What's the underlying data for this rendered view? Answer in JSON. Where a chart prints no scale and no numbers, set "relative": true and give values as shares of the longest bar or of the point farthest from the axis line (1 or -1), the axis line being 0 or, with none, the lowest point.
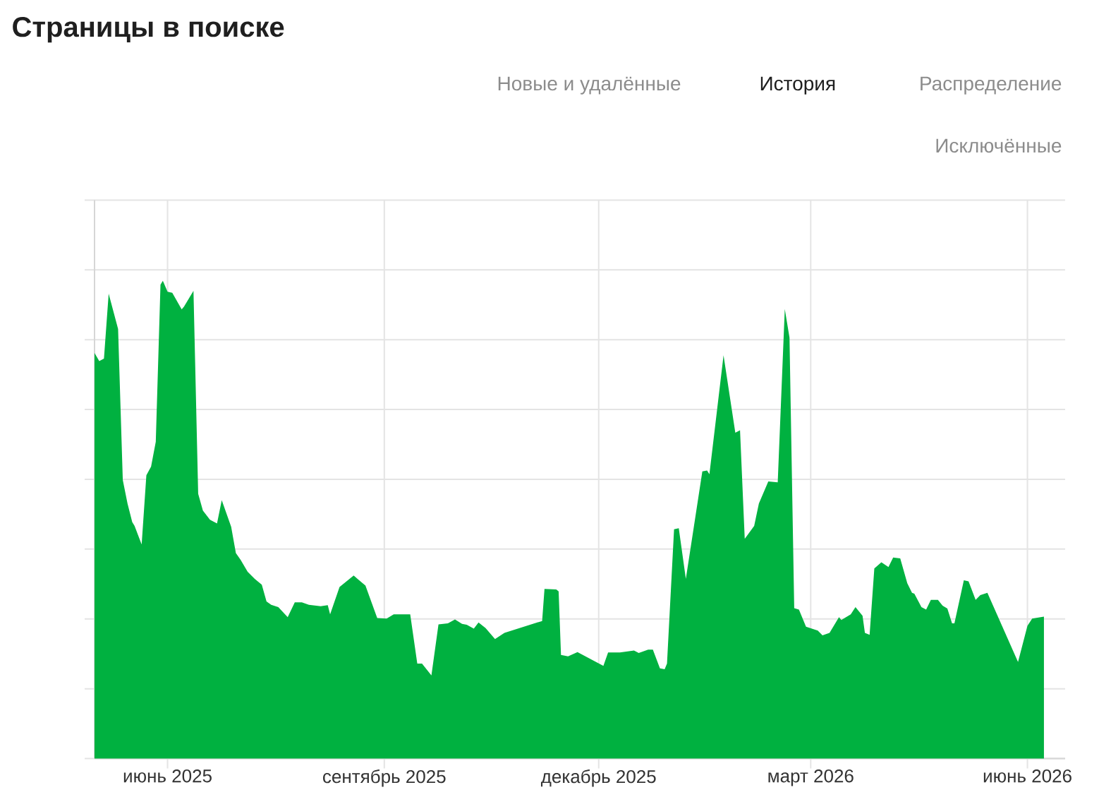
{
  "chart_data": {
    "type": "area",
    "title": "Страницы в поиске",
    "annotations": [
      "Новые и удалённые",
      "История",
      "Распределение",
      "Исключённые"
    ],
    "relative": true,
    "grid": true,
    "color": "#00b140",
    "xlim": [
      "2025-05-01",
      "2026-06-17"
    ],
    "xticks": [
      {
        "value": "2025-06-01",
        "label": "июнь 2025"
      },
      {
        "value": "2025-09-01",
        "label": "сентябрь 2025"
      },
      {
        "value": "2025-12-01",
        "label": "декабрь 2025"
      },
      {
        "value": "2026-03-01",
        "label": "март 2026"
      },
      {
        "value": "2026-06-01",
        "label": "июнь 2026"
      }
    ],
    "x": [
      "2025-05-01",
      "2025-05-03",
      "2025-05-05",
      "2025-05-07",
      "2025-05-11",
      "2025-05-13",
      "2025-05-15",
      "2025-05-17",
      "2025-05-18",
      "2025-05-21",
      "2025-05-23",
      "2025-05-25",
      "2025-05-27",
      "2025-05-29",
      "2025-05-30",
      "2025-06-01",
      "2025-06-03",
      "2025-06-07",
      "2025-06-08",
      "2025-06-12",
      "2025-06-14",
      "2025-06-16",
      "2025-06-19",
      "2025-06-22",
      "2025-06-24",
      "2025-06-28",
      "2025-06-30",
      "2025-07-02",
      "2025-07-05",
      "2025-07-08",
      "2025-07-11",
      "2025-07-13",
      "2025-07-15",
      "2025-07-18",
      "2025-07-22",
      "2025-07-25",
      "2025-07-28",
      "2025-07-31",
      "2025-08-05",
      "2025-08-08",
      "2025-08-09",
      "2025-08-13",
      "2025-08-19",
      "2025-08-24",
      "2025-08-29",
      "2025-09-02",
      "2025-09-05",
      "2025-09-12",
      "2025-09-15",
      "2025-09-17",
      "2025-09-21",
      "2025-09-24",
      "2025-09-28",
      "2025-10-01",
      "2025-10-04",
      "2025-10-06",
      "2025-10-09",
      "2025-10-11",
      "2025-10-14",
      "2025-10-18",
      "2025-10-22",
      "2025-11-07",
      "2025-11-08",
      "2025-11-13",
      "2025-11-14",
      "2025-11-15",
      "2025-11-18",
      "2025-11-22",
      "2025-12-03",
      "2025-12-05",
      "2025-12-10",
      "2025-12-16",
      "2025-12-18",
      "2025-12-22",
      "2025-12-24",
      "2025-12-27",
      "2025-12-29",
      "2025-12-30",
      "2026-01-02",
      "2026-01-04",
      "2026-01-07",
      "2026-01-14",
      "2026-01-16",
      "2026-01-17",
      "2026-01-23",
      "2026-01-28",
      "2026-01-30",
      "2026-02-01",
      "2026-02-05",
      "2026-02-07",
      "2026-02-11",
      "2026-02-15",
      "2026-02-18",
      "2026-02-20",
      "2026-02-22",
      "2026-02-24",
      "2026-02-27",
      "2026-03-04",
      "2026-03-06",
      "2026-03-09",
      "2026-03-13",
      "2026-03-14",
      "2026-03-18",
      "2026-03-20",
      "2026-03-23",
      "2026-03-24",
      "2026-03-26",
      "2026-03-28",
      "2026-03-31",
      "2026-04-03",
      "2026-04-05",
      "2026-04-08",
      "2026-04-11",
      "2026-04-13",
      "2026-04-14",
      "2026-04-17",
      "2026-04-19",
      "2026-04-21",
      "2026-04-24",
      "2026-04-26",
      "2026-04-28",
      "2026-04-30",
      "2026-05-01",
      "2026-05-05",
      "2026-05-07",
      "2026-05-10",
      "2026-05-12",
      "2026-05-15",
      "2026-05-28",
      "2026-06-01",
      "2026-06-03",
      "2026-06-08"
    ],
    "values": [
      0.849,
      0.832,
      0.837,
      0.973,
      0.899,
      0.583,
      0.534,
      0.495,
      0.487,
      0.448,
      0.593,
      0.611,
      0.663,
      0.992,
      1,
      0.977,
      0.975,
      0.94,
      0.946,
      0.979,
      0.554,
      0.519,
      0.5,
      0.492,
      0.541,
      0.485,
      0.43,
      0.416,
      0.391,
      0.376,
      0.364,
      0.329,
      0.322,
      0.317,
      0.296,
      0.327,
      0.327,
      0.322,
      0.319,
      0.321,
      0.302,
      0.359,
      0.383,
      0.362,
      0.294,
      0.293,
      0.302,
      0.302,
      0.199,
      0.199,
      0.174,
      0.281,
      0.283,
      0.291,
      0.282,
      0.28,
      0.272,
      0.285,
      0.273,
      0.25,
      0.263,
      0.288,
      0.355,
      0.354,
      0.35,
      0.217,
      0.214,
      0.223,
      0.194,
      0.222,
      0.222,
      0.226,
      0.221,
      0.228,
      0.228,
      0.189,
      0.187,
      0.199,
      0.48,
      0.482,
      0.376,
      0.601,
      0.603,
      0.595,
      0.844,
      0.682,
      0.687,
      0.46,
      0.487,
      0.534,
      0.58,
      0.578,
      0.941,
      0.881,
      0.315,
      0.312,
      0.276,
      0.268,
      0.258,
      0.263,
      0.296,
      0.29,
      0.302,
      0.317,
      0.299,
      0.263,
      0.259,
      0.398,
      0.411,
      0.401,
      0.421,
      0.419,
      0.367,
      0.347,
      0.345,
      0.317,
      0.312,
      0.332,
      0.332,
      0.32,
      0.314,
      0.283,
      0.283,
      0.373,
      0.371,
      0.332,
      0.342,
      0.347,
      0.202,
      0.278,
      0.293,
      0.297
    ]
  }
}
